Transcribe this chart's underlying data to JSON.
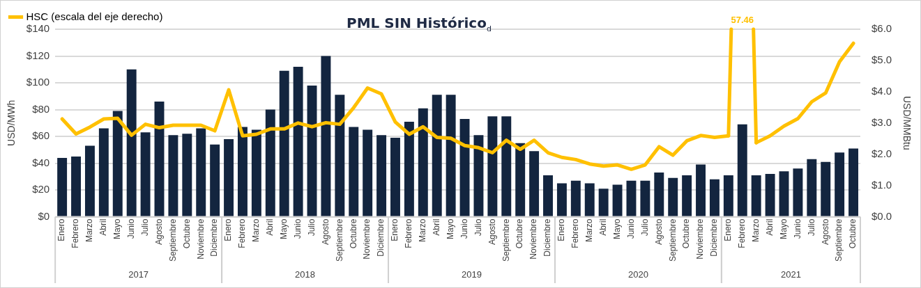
{
  "chart_data": {
    "type": "bar",
    "title": "PML SIN Histórico$_{d}$",
    "ylabel": "USD/MWh",
    "y2label": "USD/MMBtu",
    "categories": [
      "Enero",
      "Febrero",
      "Marzo",
      "Abril",
      "Mayo",
      "Junio",
      "Julio",
      "Agosto",
      "Septiembre",
      "Octubre",
      "Noviembre",
      "Diciembre",
      "Enero",
      "Febrero",
      "Marzo",
      "Abril",
      "Mayo",
      "Junio",
      "Julio",
      "Agosto",
      "Septiembre",
      "Octubre",
      "Noviembre",
      "Diciembre",
      "Enero",
      "Febrero",
      "Marzo",
      "Abril",
      "Mayo",
      "Junio",
      "Julio",
      "Agosto",
      "Septiembre",
      "Octubre",
      "Noviembre",
      "Diciembre",
      "Enero",
      "Febrero",
      "Marzo",
      "Abril",
      "Mayo",
      "Junio",
      "Julio",
      "Agosto",
      "Septiembre",
      "Octubre",
      "Noviembre",
      "Diciembre",
      "Enero",
      "Febrero",
      "Marzo",
      "Abril",
      "Mayo",
      "Junio",
      "Julio",
      "Agosto",
      "Septiembre",
      "Octubre"
    ],
    "series": [
      {
        "color": "#13253f",
        "values": [
          44,
          45,
          53,
          66,
          79,
          110,
          63,
          86,
          61,
          62,
          66,
          54,
          58,
          67,
          65,
          80,
          109,
          112,
          98,
          120,
          91,
          67,
          65,
          61,
          59,
          71,
          81,
          91,
          91,
          73,
          61,
          75,
          75,
          55,
          49,
          31,
          25,
          27,
          25,
          21,
          24,
          27,
          27,
          33,
          29,
          31,
          39,
          28,
          31,
          69,
          31,
          32,
          34,
          36,
          43,
          41,
          48,
          51
        ]
      },
      {
        "type": "line",
        "axis": "y2",
        "name": "HSC (escala del eje derecho)",
        "color": "#ffc000",
        "values": [
          3.13,
          2.65,
          2.87,
          3.13,
          3.15,
          2.61,
          2.96,
          2.85,
          2.93,
          2.93,
          2.93,
          2.75,
          4.06,
          2.59,
          2.64,
          2.81,
          2.81,
          3.0,
          2.88,
          3.01,
          2.96,
          3.49,
          4.12,
          3.93,
          3.03,
          2.64,
          2.88,
          2.54,
          2.51,
          2.28,
          2.21,
          2.05,
          2.45,
          2.16,
          2.45,
          2.05,
          1.9,
          1.83,
          1.69,
          1.62,
          1.66,
          1.52,
          1.66,
          2.24,
          1.97,
          2.43,
          2.6,
          2.54,
          2.59,
          null,
          2.37,
          2.59,
          2.9,
          3.14,
          3.68,
          3.96,
          4.96,
          5.55
        ],
        "value_labels": [
          null,
          null,
          null,
          null,
          null,
          null,
          null,
          null,
          null,
          null,
          null,
          null,
          null,
          null,
          null,
          null,
          null,
          null,
          null,
          null,
          null,
          null,
          null,
          null,
          null,
          null,
          null,
          null,
          null,
          null,
          null,
          null,
          null,
          null,
          null,
          null,
          null,
          null,
          null,
          null,
          null,
          null,
          null,
          null,
          null,
          null,
          null,
          null,
          null,
          "57.46",
          null,
          null,
          null,
          null,
          null,
          null,
          null,
          null
        ]
      }
    ],
    "ylim": [
      0,
      140
    ],
    "yticks": [
      {
        "value": 0,
        "label": "$0"
      },
      {
        "value": 20,
        "label": "$20"
      },
      {
        "value": 40,
        "label": "$40"
      },
      {
        "value": 60,
        "label": "$60"
      },
      {
        "value": 80,
        "label": "$80"
      },
      {
        "value": 100,
        "label": "$100"
      },
      {
        "value": 120,
        "label": "$120"
      },
      {
        "value": 140,
        "label": "$140"
      }
    ],
    "y2lim": [
      0,
      6
    ],
    "y2ticks": [
      {
        "value": 0,
        "label": "$0.0"
      },
      {
        "value": 1,
        "label": "$1.0"
      },
      {
        "value": 2,
        "label": "$2.0"
      },
      {
        "value": 3,
        "label": "$3.0"
      },
      {
        "value": 4,
        "label": "$4.0"
      },
      {
        "value": 5,
        "label": "$5.0"
      },
      {
        "value": 6,
        "label": "$6.0"
      }
    ],
    "annotations": [
      "2017",
      "2018",
      "2019",
      "2020",
      "2021"
    ],
    "grid": "y",
    "legend": "top left"
  }
}
